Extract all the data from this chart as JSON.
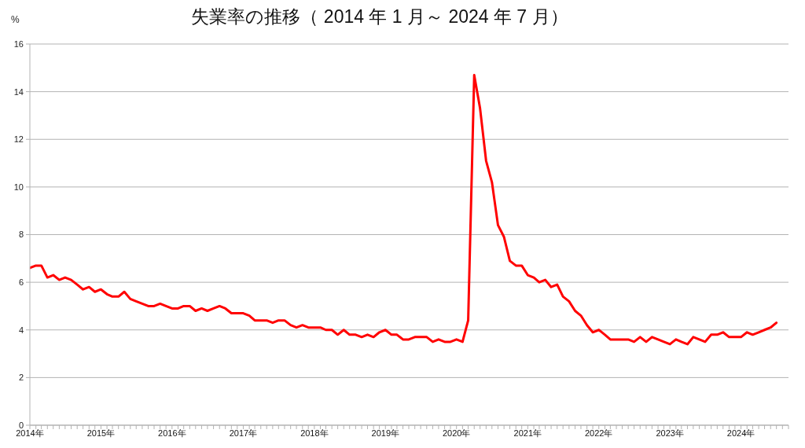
{
  "chart_data": {
    "type": "line",
    "title": "失業率の推移（ 2014 年 1 月～ 2024 年 7 月）",
    "ylabel": "%",
    "x": [
      "2014-01",
      "2014-02",
      "2014-03",
      "2014-04",
      "2014-05",
      "2014-06",
      "2014-07",
      "2014-08",
      "2014-09",
      "2014-10",
      "2014-11",
      "2014-12",
      "2015-01",
      "2015-02",
      "2015-03",
      "2015-04",
      "2015-05",
      "2015-06",
      "2015-07",
      "2015-08",
      "2015-09",
      "2015-10",
      "2015-11",
      "2015-12",
      "2016-01",
      "2016-02",
      "2016-03",
      "2016-04",
      "2016-05",
      "2016-06",
      "2016-07",
      "2016-08",
      "2016-09",
      "2016-10",
      "2016-11",
      "2016-12",
      "2017-01",
      "2017-02",
      "2017-03",
      "2017-04",
      "2017-05",
      "2017-06",
      "2017-07",
      "2017-08",
      "2017-09",
      "2017-10",
      "2017-11",
      "2017-12",
      "2018-01",
      "2018-02",
      "2018-03",
      "2018-04",
      "2018-05",
      "2018-06",
      "2018-07",
      "2018-08",
      "2018-09",
      "2018-10",
      "2018-11",
      "2018-12",
      "2019-01",
      "2019-02",
      "2019-03",
      "2019-04",
      "2019-05",
      "2019-06",
      "2019-07",
      "2019-08",
      "2019-09",
      "2019-10",
      "2019-11",
      "2019-12",
      "2020-01",
      "2020-02",
      "2020-03",
      "2020-04",
      "2020-05",
      "2020-06",
      "2020-07",
      "2020-08",
      "2020-09",
      "2020-10",
      "2020-11",
      "2020-12",
      "2021-01",
      "2021-02",
      "2021-03",
      "2021-04",
      "2021-05",
      "2021-06",
      "2021-07",
      "2021-08",
      "2021-09",
      "2021-10",
      "2021-11",
      "2021-12",
      "2022-01",
      "2022-02",
      "2022-03",
      "2022-04",
      "2022-05",
      "2022-06",
      "2022-07",
      "2022-08",
      "2022-09",
      "2022-10",
      "2022-11",
      "2022-12",
      "2023-01",
      "2023-02",
      "2023-03",
      "2023-04",
      "2023-05",
      "2023-06",
      "2023-07",
      "2023-08",
      "2023-09",
      "2023-10",
      "2023-11",
      "2023-12",
      "2024-01",
      "2024-02",
      "2024-03",
      "2024-04",
      "2024-05",
      "2024-06",
      "2024-07"
    ],
    "series": [
      {
        "color": "#ff0000",
        "values": [
          6.6,
          6.7,
          6.7,
          6.2,
          6.3,
          6.1,
          6.2,
          6.1,
          5.9,
          5.7,
          5.8,
          5.6,
          5.7,
          5.5,
          5.4,
          5.4,
          5.6,
          5.3,
          5.2,
          5.1,
          5.0,
          5.0,
          5.1,
          5.0,
          4.9,
          4.9,
          5.0,
          5.0,
          4.8,
          4.9,
          4.8,
          4.9,
          5.0,
          4.9,
          4.7,
          4.7,
          4.7,
          4.6,
          4.4,
          4.4,
          4.4,
          4.3,
          4.4,
          4.4,
          4.2,
          4.1,
          4.2,
          4.1,
          4.1,
          4.1,
          4.0,
          4.0,
          3.8,
          4.0,
          3.8,
          3.8,
          3.7,
          3.8,
          3.7,
          3.9,
          4.0,
          3.8,
          3.8,
          3.6,
          3.6,
          3.7,
          3.7,
          3.7,
          3.5,
          3.6,
          3.5,
          3.5,
          3.6,
          3.5,
          4.4,
          14.7,
          13.3,
          11.1,
          10.2,
          8.4,
          7.9,
          6.9,
          6.7,
          6.7,
          6.3,
          6.2,
          6.0,
          6.1,
          5.8,
          5.9,
          5.4,
          5.2,
          4.8,
          4.6,
          4.2,
          3.9,
          4.0,
          3.8,
          3.6,
          3.6,
          3.6,
          3.6,
          3.5,
          3.7,
          3.5,
          3.7,
          3.6,
          3.5,
          3.4,
          3.6,
          3.5,
          3.4,
          3.7,
          3.6,
          3.5,
          3.8,
          3.8,
          3.9,
          3.7,
          3.7,
          3.7,
          3.9,
          3.8,
          3.9,
          4.0,
          4.1,
          4.3
        ]
      }
    ],
    "xlim": [
      "2014-01",
      "2024-09"
    ],
    "xticks": [
      {
        "value": "2014-01",
        "label": "2014年"
      },
      {
        "value": "2014-02",
        "label": null
      },
      {
        "value": "2014-03",
        "label": null
      },
      {
        "value": "2014-04",
        "label": null
      },
      {
        "value": "2014-05",
        "label": null
      },
      {
        "value": "2014-06",
        "label": null
      },
      {
        "value": "2014-07",
        "label": null
      },
      {
        "value": "2014-08",
        "label": null
      },
      {
        "value": "2014-09",
        "label": null
      },
      {
        "value": "2014-10",
        "label": null
      },
      {
        "value": "2014-11",
        "label": null
      },
      {
        "value": "2014-12",
        "label": null
      },
      {
        "value": "2015-01",
        "label": "2015年"
      },
      {
        "value": "2015-02",
        "label": null
      },
      {
        "value": "2015-03",
        "label": null
      },
      {
        "value": "2015-04",
        "label": null
      },
      {
        "value": "2015-05",
        "label": null
      },
      {
        "value": "2015-06",
        "label": null
      },
      {
        "value": "2015-07",
        "label": null
      },
      {
        "value": "2015-08",
        "label": null
      },
      {
        "value": "2015-09",
        "label": null
      },
      {
        "value": "2015-10",
        "label": null
      },
      {
        "value": "2015-11",
        "label": null
      },
      {
        "value": "2015-12",
        "label": null
      },
      {
        "value": "2016-01",
        "label": "2016年"
      },
      {
        "value": "2016-02",
        "label": null
      },
      {
        "value": "2016-03",
        "label": null
      },
      {
        "value": "2016-04",
        "label": null
      },
      {
        "value": "2016-05",
        "label": null
      },
      {
        "value": "2016-06",
        "label": null
      },
      {
        "value": "2016-07",
        "label": null
      },
      {
        "value": "2016-08",
        "label": null
      },
      {
        "value": "2016-09",
        "label": null
      },
      {
        "value": "2016-10",
        "label": null
      },
      {
        "value": "2016-11",
        "label": null
      },
      {
        "value": "2016-12",
        "label": null
      },
      {
        "value": "2017-01",
        "label": "2017年"
      },
      {
        "value": "2017-02",
        "label": null
      },
      {
        "value": "2017-03",
        "label": null
      },
      {
        "value": "2017-04",
        "label": null
      },
      {
        "value": "2017-05",
        "label": null
      },
      {
        "value": "2017-06",
        "label": null
      },
      {
        "value": "2017-07",
        "label": null
      },
      {
        "value": "2017-08",
        "label": null
      },
      {
        "value": "2017-09",
        "label": null
      },
      {
        "value": "2017-10",
        "label": null
      },
      {
        "value": "2017-11",
        "label": null
      },
      {
        "value": "2017-12",
        "label": null
      },
      {
        "value": "2018-01",
        "label": "2018年"
      },
      {
        "value": "2018-02",
        "label": null
      },
      {
        "value": "2018-03",
        "label": null
      },
      {
        "value": "2018-04",
        "label": null
      },
      {
        "value": "2018-05",
        "label": null
      },
      {
        "value": "2018-06",
        "label": null
      },
      {
        "value": "2018-07",
        "label": null
      },
      {
        "value": "2018-08",
        "label": null
      },
      {
        "value": "2018-09",
        "label": null
      },
      {
        "value": "2018-10",
        "label": null
      },
      {
        "value": "2018-11",
        "label": null
      },
      {
        "value": "2018-12",
        "label": null
      },
      {
        "value": "2019-01",
        "label": "2019年"
      },
      {
        "value": "2019-02",
        "label": null
      },
      {
        "value": "2019-03",
        "label": null
      },
      {
        "value": "2019-04",
        "label": null
      },
      {
        "value": "2019-05",
        "label": null
      },
      {
        "value": "2019-06",
        "label": null
      },
      {
        "value": "2019-07",
        "label": null
      },
      {
        "value": "2019-08",
        "label": null
      },
      {
        "value": "2019-09",
        "label": null
      },
      {
        "value": "2019-10",
        "label": null
      },
      {
        "value": "2019-11",
        "label": null
      },
      {
        "value": "2019-12",
        "label": null
      },
      {
        "value": "2020-01",
        "label": "2020年"
      },
      {
        "value": "2020-02",
        "label": null
      },
      {
        "value": "2020-03",
        "label": null
      },
      {
        "value": "2020-04",
        "label": null
      },
      {
        "value": "2020-05",
        "label": null
      },
      {
        "value": "2020-06",
        "label": null
      },
      {
        "value": "2020-07",
        "label": null
      },
      {
        "value": "2020-08",
        "label": null
      },
      {
        "value": "2020-09",
        "label": null
      },
      {
        "value": "2020-10",
        "label": null
      },
      {
        "value": "2020-11",
        "label": null
      },
      {
        "value": "2020-12",
        "label": null
      },
      {
        "value": "2021-01",
        "label": "2021年"
      },
      {
        "value": "2021-02",
        "label": null
      },
      {
        "value": "2021-03",
        "label": null
      },
      {
        "value": "2021-04",
        "label": null
      },
      {
        "value": "2021-05",
        "label": null
      },
      {
        "value": "2021-06",
        "label": null
      },
      {
        "value": "2021-07",
        "label": null
      },
      {
        "value": "2021-08",
        "label": null
      },
      {
        "value": "2021-09",
        "label": null
      },
      {
        "value": "2021-10",
        "label": null
      },
      {
        "value": "2021-11",
        "label": null
      },
      {
        "value": "2021-12",
        "label": null
      },
      {
        "value": "2022-01",
        "label": "2022年"
      },
      {
        "value": "2022-02",
        "label": null
      },
      {
        "value": "2022-03",
        "label": null
      },
      {
        "value": "2022-04",
        "label": null
      },
      {
        "value": "2022-05",
        "label": null
      },
      {
        "value": "2022-06",
        "label": null
      },
      {
        "value": "2022-07",
        "label": null
      },
      {
        "value": "2022-08",
        "label": null
      },
      {
        "value": "2022-09",
        "label": null
      },
      {
        "value": "2022-10",
        "label": null
      },
      {
        "value": "2022-11",
        "label": null
      },
      {
        "value": "2022-12",
        "label": null
      },
      {
        "value": "2023-01",
        "label": "2023年"
      },
      {
        "value": "2023-02",
        "label": null
      },
      {
        "value": "2023-03",
        "label": null
      },
      {
        "value": "2023-04",
        "label": null
      },
      {
        "value": "2023-05",
        "label": null
      },
      {
        "value": "2023-06",
        "label": null
      },
      {
        "value": "2023-07",
        "label": null
      },
      {
        "value": "2023-08",
        "label": null
      },
      {
        "value": "2023-09",
        "label": null
      },
      {
        "value": "2023-10",
        "label": null
      },
      {
        "value": "2023-11",
        "label": null
      },
      {
        "value": "2023-12",
        "label": null
      },
      {
        "value": "2024-01",
        "label": "2024年"
      },
      {
        "value": "2024-02",
        "label": null
      },
      {
        "value": "2024-03",
        "label": null
      },
      {
        "value": "2024-04",
        "label": null
      },
      {
        "value": "2024-05",
        "label": null
      },
      {
        "value": "2024-06",
        "label": null
      },
      {
        "value": "2024-07",
        "label": null
      },
      {
        "value": "2024-08",
        "label": null
      },
      {
        "value": "2024-09",
        "label": null
      }
    ],
    "ylim": [
      0,
      16
    ],
    "yticks": [
      0,
      2,
      4,
      6,
      8,
      10,
      12,
      14,
      16
    ],
    "grid": "y"
  }
}
